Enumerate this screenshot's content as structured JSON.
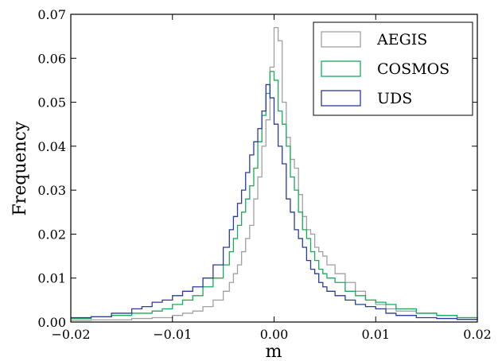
{
  "chart_data": {
    "type": "line",
    "xlabel": "m",
    "ylabel": "Frequency",
    "xlim": [
      -0.02,
      0.02
    ],
    "ylim": [
      0,
      0.07
    ],
    "xticks": [
      -0.02,
      -0.01,
      0.0,
      0.01,
      0.02
    ],
    "xtick_labels": [
      "−0.02",
      "−0.01",
      "0.00",
      "0.01",
      "0.02"
    ],
    "yticks": [
      0,
      0.01,
      0.02,
      0.03,
      0.04,
      0.05,
      0.06,
      0.07
    ],
    "ytick_labels": [
      "0.00",
      "0.01",
      "0.02",
      "0.03",
      "0.04",
      "0.05",
      "0.06",
      "0.07"
    ],
    "grid": false,
    "legend_position": "top-right",
    "step_width": 0.0004,
    "step_style": "post",
    "series": [
      {
        "name": "AEGIS",
        "color": "#a0a0a0",
        "x": [
          -0.02,
          -0.018,
          -0.016,
          -0.014,
          -0.012,
          -0.01,
          -0.009,
          -0.008,
          -0.007,
          -0.006,
          -0.005,
          -0.0044,
          -0.004,
          -0.0036,
          -0.0032,
          -0.0028,
          -0.0024,
          -0.002,
          -0.0016,
          -0.0012,
          -0.0008,
          -0.0004,
          0.0,
          0.0004,
          0.0008,
          0.0012,
          0.0016,
          0.002,
          0.0024,
          0.0028,
          0.0032,
          0.0036,
          0.004,
          0.0044,
          0.0048,
          0.0052,
          0.006,
          0.007,
          0.008,
          0.009,
          0.01,
          0.011,
          0.012,
          0.014,
          0.016,
          0.018,
          0.02
        ],
        "y": [
          0.0004,
          0.0005,
          0.0005,
          0.0008,
          0.001,
          0.0015,
          0.002,
          0.0025,
          0.0035,
          0.005,
          0.007,
          0.009,
          0.011,
          0.013,
          0.016,
          0.019,
          0.022,
          0.028,
          0.033,
          0.04,
          0.046,
          0.058,
          0.067,
          0.064,
          0.05,
          0.042,
          0.037,
          0.035,
          0.029,
          0.024,
          0.021,
          0.02,
          0.017,
          0.016,
          0.015,
          0.013,
          0.011,
          0.009,
          0.007,
          0.005,
          0.004,
          0.003,
          0.0025,
          0.002,
          0.0015,
          0.001,
          0.0008
        ]
      },
      {
        "name": "COSMOS",
        "color": "#1aaa5a",
        "x": [
          -0.02,
          -0.018,
          -0.016,
          -0.014,
          -0.012,
          -0.011,
          -0.01,
          -0.009,
          -0.008,
          -0.007,
          -0.006,
          -0.005,
          -0.0044,
          -0.004,
          -0.0036,
          -0.0032,
          -0.0028,
          -0.0024,
          -0.002,
          -0.0016,
          -0.0012,
          -0.0008,
          -0.0004,
          0.0,
          0.0004,
          0.0008,
          0.0012,
          0.0016,
          0.002,
          0.0024,
          0.0028,
          0.0032,
          0.0036,
          0.004,
          0.0044,
          0.0048,
          0.0052,
          0.006,
          0.007,
          0.008,
          0.009,
          0.01,
          0.011,
          0.012,
          0.014,
          0.016,
          0.018,
          0.02
        ],
        "y": [
          0.0008,
          0.0012,
          0.0015,
          0.002,
          0.0025,
          0.003,
          0.004,
          0.005,
          0.006,
          0.008,
          0.01,
          0.013,
          0.016,
          0.019,
          0.022,
          0.025,
          0.028,
          0.031,
          0.035,
          0.041,
          0.047,
          0.052,
          0.057,
          0.055,
          0.048,
          0.045,
          0.04,
          0.033,
          0.03,
          0.025,
          0.021,
          0.019,
          0.016,
          0.014,
          0.012,
          0.011,
          0.01,
          0.009,
          0.007,
          0.006,
          0.005,
          0.0045,
          0.004,
          0.003,
          0.002,
          0.0015,
          0.001,
          0.0008
        ]
      },
      {
        "name": "UDS",
        "color": "#2a3a9a",
        "x": [
          -0.02,
          -0.018,
          -0.016,
          -0.014,
          -0.013,
          -0.012,
          -0.011,
          -0.01,
          -0.009,
          -0.008,
          -0.007,
          -0.006,
          -0.005,
          -0.0044,
          -0.004,
          -0.0036,
          -0.0032,
          -0.0028,
          -0.0024,
          -0.002,
          -0.0016,
          -0.0012,
          -0.0008,
          -0.0004,
          0.0,
          0.0004,
          0.0008,
          0.0012,
          0.0016,
          0.002,
          0.0024,
          0.0028,
          0.0032,
          0.0036,
          0.004,
          0.0044,
          0.0048,
          0.0052,
          0.006,
          0.007,
          0.008,
          0.009,
          0.01,
          0.011,
          0.012,
          0.014,
          0.016,
          0.018,
          0.02
        ],
        "y": [
          0.001,
          0.0012,
          0.002,
          0.003,
          0.0035,
          0.0045,
          0.005,
          0.006,
          0.007,
          0.008,
          0.01,
          0.013,
          0.017,
          0.021,
          0.024,
          0.027,
          0.03,
          0.034,
          0.038,
          0.041,
          0.044,
          0.048,
          0.054,
          0.051,
          0.045,
          0.04,
          0.036,
          0.028,
          0.025,
          0.021,
          0.019,
          0.017,
          0.014,
          0.012,
          0.011,
          0.009,
          0.008,
          0.007,
          0.006,
          0.005,
          0.004,
          0.0035,
          0.003,
          0.002,
          0.0015,
          0.001,
          0.0008,
          0.0006,
          0.0005
        ]
      }
    ]
  }
}
